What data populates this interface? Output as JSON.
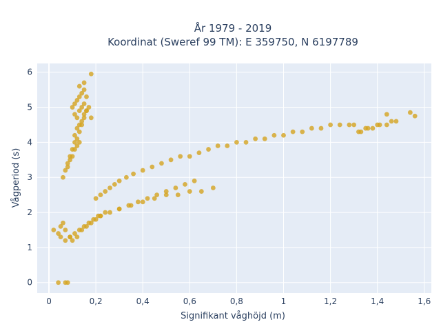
{
  "chart_data": {
    "type": "scatter",
    "title": "År 1979 - 2019",
    "subtitle": "Koordinat (Sweref 99 TM): E 359750, N 6197789",
    "xlabel": "Signifikant våghöjd (m)",
    "ylabel": "Vågperiod (s)",
    "xlim": [
      -0.05,
      1.63
    ],
    "ylim": [
      -0.3,
      6.25
    ],
    "x_ticks": [
      0,
      0.2,
      0.4,
      0.6,
      0.8,
      1.0,
      1.2,
      1.4,
      1.6
    ],
    "x_tick_labels": [
      "0",
      "0,2",
      "0,4",
      "0,6",
      "0,8",
      "1",
      "1,2",
      "1,4",
      "1,6"
    ],
    "y_ticks": [
      0,
      1,
      2,
      3,
      4,
      5,
      6
    ],
    "y_tick_labels": [
      "0",
      "1",
      "2",
      "3",
      "4",
      "5",
      "6"
    ],
    "grid": true,
    "marker_color": "#d4a420",
    "plot_background": "#e5ecf6",
    "series": [
      {
        "x": [
          0.04,
          0.07,
          0.08,
          0.02,
          0.04,
          0.05,
          0.06,
          0.07,
          0.09,
          0.1,
          0.12,
          0.14,
          0.16,
          0.18,
          0.2,
          0.22,
          0.24,
          0.2,
          0.22,
          0.24,
          0.26,
          0.28,
          0.3,
          0.33,
          0.36,
          0.4,
          0.44,
          0.48,
          0.52,
          0.56,
          0.6,
          0.64,
          0.68,
          0.72,
          0.76,
          0.8,
          0.84,
          0.88,
          0.92,
          0.96,
          1.0,
          1.04,
          1.08,
          1.12,
          1.16,
          1.2,
          1.24,
          1.28,
          1.3,
          0.3,
          0.35,
          0.4,
          0.45,
          0.5,
          0.55,
          0.6,
          0.65,
          0.7,
          0.1,
          0.11,
          0.12,
          0.13,
          0.14,
          0.15,
          0.16,
          0.11,
          0.12,
          0.13,
          0.14,
          0.15,
          0.13,
          0.11,
          0.12,
          0.13,
          0.14,
          0.15,
          0.16,
          0.13,
          0.08,
          0.09,
          0.1,
          0.11,
          0.12,
          0.13,
          0.14,
          0.15,
          0.16,
          0.17,
          0.18,
          0.06,
          0.07,
          0.08,
          0.09,
          0.1,
          0.11,
          0.12,
          0.22,
          0.26,
          0.3,
          0.34,
          0.38,
          0.42,
          0.46,
          0.5,
          0.54,
          0.58,
          0.62,
          0.05,
          0.07,
          0.09,
          0.11,
          0.13,
          0.15,
          0.17,
          0.19,
          0.21,
          1.32,
          1.36,
          1.4,
          1.44,
          1.48,
          1.33,
          1.38,
          1.41,
          1.46,
          1.35,
          1.44,
          1.54,
          1.56,
          0.18,
          0.15
        ],
        "y": [
          0.0,
          0.0,
          0.0,
          1.5,
          1.4,
          1.6,
          1.7,
          1.5,
          1.3,
          1.2,
          1.3,
          1.5,
          1.6,
          1.7,
          1.8,
          1.9,
          2.0,
          2.4,
          2.5,
          2.6,
          2.7,
          2.8,
          2.9,
          3.0,
          3.1,
          3.2,
          3.3,
          3.4,
          3.5,
          3.6,
          3.6,
          3.7,
          3.8,
          3.9,
          3.9,
          4.0,
          4.0,
          4.1,
          4.1,
          4.2,
          4.2,
          4.3,
          4.3,
          4.4,
          4.4,
          4.5,
          4.5,
          4.5,
          4.5,
          2.1,
          2.2,
          2.3,
          2.4,
          2.5,
          2.5,
          2.6,
          2.6,
          2.7,
          5.0,
          5.1,
          5.2,
          5.3,
          5.4,
          5.5,
          5.3,
          4.8,
          4.7,
          4.9,
          5.0,
          5.1,
          5.6,
          4.2,
          4.4,
          4.5,
          4.6,
          4.8,
          4.9,
          4.0,
          3.4,
          3.6,
          3.8,
          4.0,
          4.1,
          4.3,
          4.5,
          4.7,
          4.9,
          5.0,
          4.7,
          3.0,
          3.2,
          3.3,
          3.5,
          3.6,
          3.8,
          3.9,
          1.9,
          2.0,
          2.1,
          2.2,
          2.3,
          2.4,
          2.5,
          2.6,
          2.7,
          2.8,
          2.9,
          1.3,
          1.2,
          1.3,
          1.4,
          1.5,
          1.6,
          1.7,
          1.8,
          1.9,
          4.3,
          4.4,
          4.5,
          4.5,
          4.6,
          4.3,
          4.4,
          4.5,
          4.6,
          4.4,
          4.8,
          4.85,
          4.75,
          5.95,
          5.7
        ]
      }
    ]
  }
}
